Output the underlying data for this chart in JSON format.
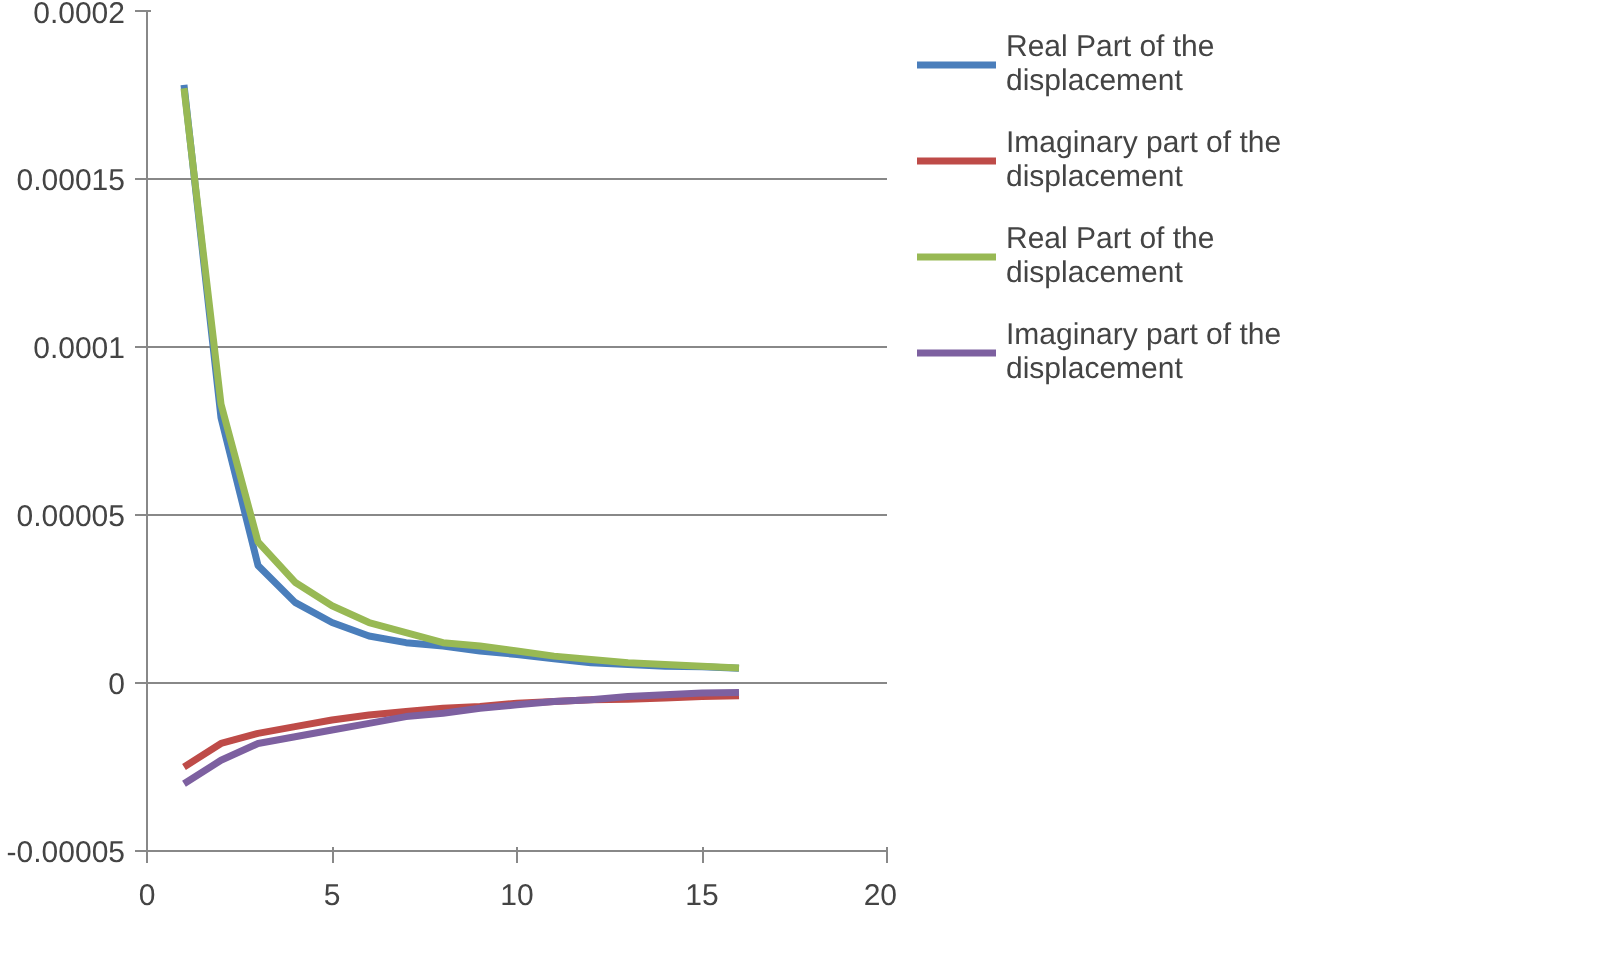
{
  "chart_data": {
    "type": "line",
    "x": [
      1,
      2,
      3,
      4,
      5,
      6,
      7,
      8,
      9,
      10,
      11,
      12,
      13,
      14,
      15,
      16
    ],
    "series": [
      {
        "name": "Real Part of the displacement",
        "color": "#4a7ebb",
        "values": [
          0.000178,
          7.9e-05,
          3.5e-05,
          2.4e-05,
          1.8e-05,
          1.4e-05,
          1.2e-05,
          1.1e-05,
          9.5e-06,
          8.5e-06,
          7.2e-06,
          6e-06,
          5.5e-06,
          5e-06,
          4.8e-06,
          4.4e-06
        ]
      },
      {
        "name": "Imaginary part of the displacement",
        "color": "#be4b48",
        "values": [
          -2.5e-05,
          -1.8e-05,
          -1.5e-05,
          -1.3e-05,
          -1.1e-05,
          -9.5e-06,
          -8.5e-06,
          -7.5e-06,
          -7e-06,
          -6e-06,
          -5.5e-06,
          -5e-06,
          -4.8e-06,
          -4.5e-06,
          -4e-06,
          -3.8e-06
        ]
      },
      {
        "name": "Real Part of the displacement",
        "color": "#98b954",
        "values": [
          0.000177,
          8.3e-05,
          4.2e-05,
          3e-05,
          2.3e-05,
          1.8e-05,
          1.5e-05,
          1.2e-05,
          1.1e-05,
          9.5e-06,
          8e-06,
          7e-06,
          6e-06,
          5.5e-06,
          5e-06,
          4.5e-06
        ]
      },
      {
        "name": "Imaginary part of the displacement",
        "color": "#7d60a0",
        "values": [
          -3e-05,
          -2.3e-05,
          -1.8e-05,
          -1.6e-05,
          -1.4e-05,
          -1.2e-05,
          -1e-05,
          -9e-06,
          -7.5e-06,
          -6.5e-06,
          -5.5e-06,
          -5e-06,
          -4e-06,
          -3.5e-06,
          -3e-06,
          -2.8e-06
        ]
      }
    ],
    "xlim": [
      0,
      20
    ],
    "xticks": [
      0,
      5,
      10,
      15,
      20
    ],
    "ylim": [
      -5e-05,
      0.0002
    ],
    "yticks": [
      {
        "value": -5e-05,
        "label": "-0.00005"
      },
      0,
      {
        "value": 5e-05,
        "label": "0.00005"
      },
      {
        "value": 0.0001,
        "label": "0.0001"
      },
      {
        "value": 0.00015,
        "label": "0.00015"
      },
      {
        "value": 0.0002,
        "label": "0.0002"
      }
    ],
    "grid": "y",
    "legend": "right",
    "marker": "none",
    "line_style": "solid"
  }
}
